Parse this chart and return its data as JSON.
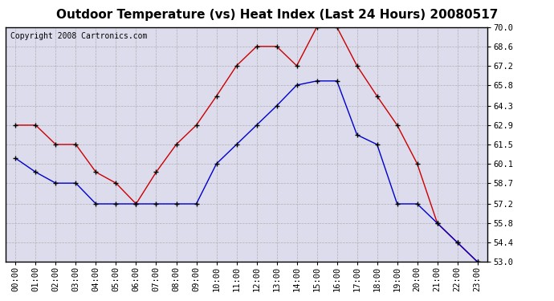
{
  "title": "Outdoor Temperature (vs) Heat Index (Last 24 Hours) 20080517",
  "copyright_text": "Copyright 2008 Cartronics.com",
  "x_labels": [
    "00:00",
    "01:00",
    "02:00",
    "03:00",
    "04:00",
    "05:00",
    "06:00",
    "07:00",
    "08:00",
    "09:00",
    "10:00",
    "11:00",
    "12:00",
    "13:00",
    "14:00",
    "15:00",
    "16:00",
    "17:00",
    "18:00",
    "19:00",
    "20:00",
    "21:00",
    "22:00",
    "23:00"
  ],
  "temp_blue": [
    60.5,
    59.5,
    58.7,
    58.7,
    57.2,
    57.2,
    57.2,
    57.2,
    57.2,
    57.2,
    60.1,
    61.5,
    62.9,
    64.3,
    65.8,
    66.1,
    66.1,
    62.2,
    61.5,
    57.2,
    57.2,
    55.8,
    54.4,
    53.0
  ],
  "heat_red": [
    62.9,
    62.9,
    61.5,
    61.5,
    59.5,
    58.7,
    57.2,
    59.5,
    61.5,
    62.9,
    65.0,
    67.2,
    68.6,
    68.6,
    67.2,
    70.0,
    70.0,
    67.2,
    65.0,
    62.9,
    60.1,
    55.8,
    54.4,
    53.0
  ],
  "ylim_min": 53.0,
  "ylim_max": 70.0,
  "yticks": [
    53.0,
    54.4,
    55.8,
    57.2,
    58.7,
    60.1,
    61.5,
    62.9,
    64.3,
    65.8,
    67.2,
    68.6,
    70.0
  ],
  "blue_color": "#0000cc",
  "red_color": "#cc0000",
  "bg_color": "#dcdcec",
  "title_fontsize": 11,
  "copyright_fontsize": 7,
  "grid_color": "#aaaaaa",
  "tick_label_fontsize": 7.5
}
